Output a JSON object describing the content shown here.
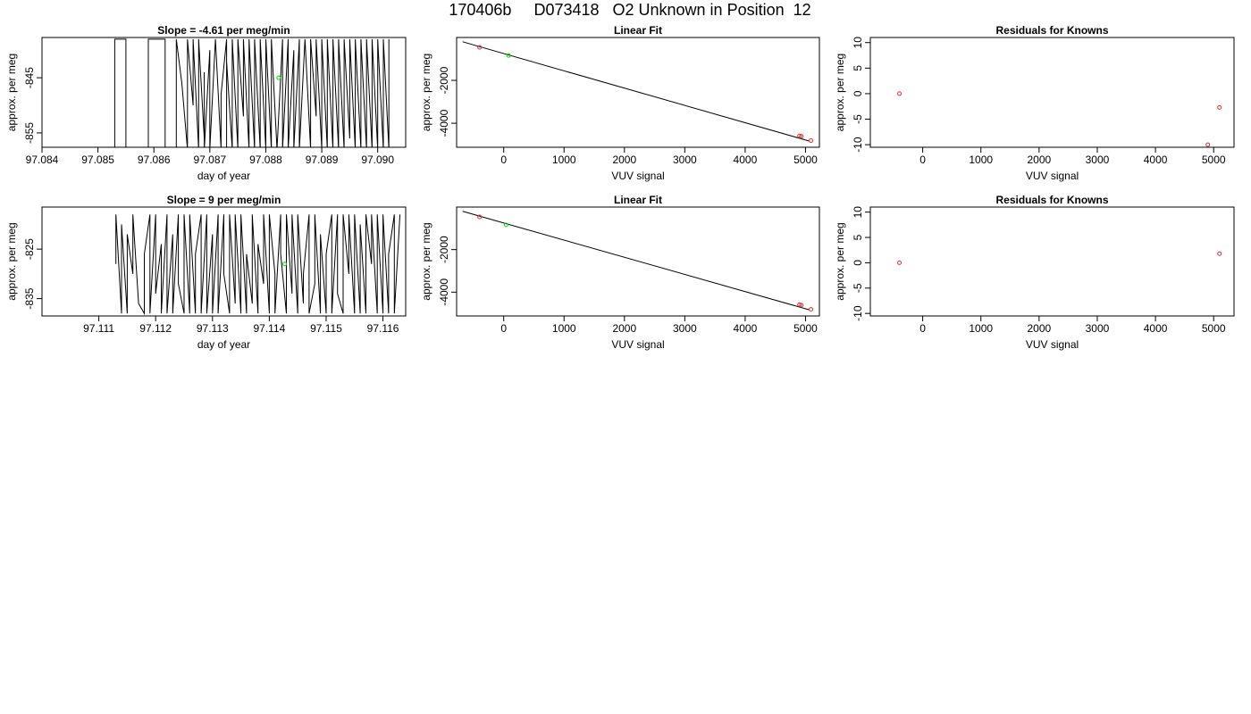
{
  "page_title": "170406b     D073418   O2 Unknown in Position  12",
  "chart_data": [
    {
      "id": "p1",
      "type": "line",
      "title": "Slope =  -4.61  per meg/min",
      "xlabel": "day of year",
      "ylabel": "approx. per meg",
      "xlim": [
        97.084,
        97.0905
      ],
      "ylim": [
        -857.6,
        -837.7
      ],
      "xticks": [
        97.084,
        97.085,
        97.086,
        97.087,
        97.088,
        97.089,
        97.09
      ],
      "xtick_labels": [
        "97.084",
        "97.085",
        "97.086",
        "97.087",
        "97.088",
        "97.089",
        "97.090"
      ],
      "yticks": [
        -855,
        -845
      ],
      "ytick_labels": [
        "-855",
        "-845"
      ],
      "series": [
        {
          "color": "#000000",
          "x": [
            97.0853,
            97.0853,
            97.0855,
            97.0855,
            97.0859,
            97.0859,
            97.0862,
            97.0862,
            97.0864,
            97.0864,
            97.0865,
            97.0866,
            97.0866,
            97.0867,
            97.0867,
            97.0868,
            97.0868,
            97.0869,
            97.0869,
            97.0869,
            97.087,
            97.087,
            97.0871,
            97.0872,
            97.0872,
            97.0873,
            97.0873,
            97.0873,
            97.0874,
            97.0874,
            97.0875,
            97.0875,
            97.0876,
            97.0876,
            97.0877,
            97.0877,
            97.0878,
            97.0878,
            97.0879,
            97.0879,
            97.088,
            97.088,
            97.0881,
            97.0881,
            97.0882,
            97.0883,
            97.0883,
            97.0884,
            97.0884,
            97.0885,
            97.0885,
            97.0886,
            97.0886,
            97.0887,
            97.0888,
            97.0888,
            97.0889,
            97.0889,
            97.089,
            97.089,
            97.0891,
            97.0891,
            97.0892,
            97.0892,
            97.0893,
            97.0893,
            97.0894,
            97.0894,
            97.0895,
            97.0895,
            97.0896,
            97.0896,
            97.0897,
            97.0897,
            97.0898,
            97.0898,
            97.0899,
            97.0899,
            97.09,
            97.09,
            97.0901,
            97.0901,
            97.0902,
            97.0902
          ],
          "y": [
            -858,
            -838,
            -838,
            -858,
            -858,
            -838,
            -838,
            -858,
            -858,
            -838,
            -846,
            -858,
            -838,
            -850,
            -838,
            -858,
            -838,
            -856,
            -844,
            -858,
            -840,
            -858,
            -838,
            -858,
            -848,
            -838,
            -858,
            -842,
            -858,
            -838,
            -858,
            -838,
            -852,
            -838,
            -858,
            -838,
            -858,
            -838,
            -858,
            -838,
            -858,
            -838,
            -858,
            -838,
            -858,
            -838,
            -858,
            -838,
            -858,
            -840,
            -858,
            -838,
            -858,
            -838,
            -858,
            -838,
            -852,
            -838,
            -858,
            -838,
            -858,
            -838,
            -858,
            -838,
            -858,
            -838,
            -858,
            -838,
            -856,
            -838,
            -858,
            -838,
            -858,
            -838,
            -858,
            -838,
            -858,
            -838,
            -858,
            -838,
            -858,
            -838,
            -858,
            -838
          ]
        },
        {
          "color": "#00dd00",
          "marker": "circle",
          "x": [
            97.08823
          ],
          "y": [
            -845.0
          ]
        }
      ]
    },
    {
      "id": "p2",
      "type": "scatter",
      "title": "Linear Fit",
      "xlabel": "VUV signal",
      "ylabel": "approx. per meg",
      "xlim": [
        -780,
        5230
      ],
      "ylim": [
        -5120,
        0
      ],
      "rotated_y_ticks": true,
      "xticks": [
        0,
        1000,
        2000,
        3000,
        4000,
        5000
      ],
      "xtick_labels": [
        "0",
        "1000",
        "2000",
        "3000",
        "4000",
        "5000"
      ],
      "yticks": [
        -4000,
        -2000
      ],
      "ytick_labels": [
        "-4000",
        "-2000"
      ],
      "fit_line": {
        "x": [
          -680,
          5060
        ],
        "y": [
          -200,
          -4830
        ]
      },
      "series": [
        {
          "color": "#e03030",
          "marker": "circle",
          "x": [
            -400,
            4900,
            4930,
            5090
          ],
          "y": [
            -460,
            -4590,
            -4610,
            -4810
          ]
        },
        {
          "color": "#00dd00",
          "marker": "circle",
          "x": [
            80
          ],
          "y": [
            -840
          ]
        }
      ]
    },
    {
      "id": "p3",
      "type": "scatter",
      "title": "Residuals for Knowns",
      "xlabel": "VUV signal",
      "ylabel": "approx. per meg",
      "xlim": [
        -900,
        5350
      ],
      "ylim": [
        -10.5,
        11
      ],
      "xticks": [
        0,
        1000,
        2000,
        3000,
        4000,
        5000
      ],
      "xtick_labels": [
        "0",
        "1000",
        "2000",
        "3000",
        "4000",
        "5000"
      ],
      "yticks": [
        -10,
        -5,
        0,
        5,
        10
      ],
      "ytick_labels": [
        "-10",
        "-5",
        "0",
        "5",
        "10"
      ],
      "series": [
        {
          "color": "#e03030",
          "marker": "circle",
          "x": [
            -400,
            4900,
            5100
          ],
          "y": [
            0,
            -10,
            -2.7
          ]
        }
      ]
    },
    {
      "id": "p4",
      "type": "line",
      "title": "Slope =  9  per meg/min",
      "xlabel": "day of year",
      "ylabel": "approx. per meg",
      "xlim": [
        97.11,
        97.1164
      ],
      "ylim": [
        -838.5,
        -816.5
      ],
      "xticks": [
        97.111,
        97.112,
        97.113,
        97.114,
        97.115,
        97.116
      ],
      "xtick_labels": [
        "97.111",
        "97.112",
        "97.113",
        "97.114",
        "97.115",
        "97.116"
      ],
      "yticks": [
        -835,
        -825
      ],
      "ytick_labels": [
        "-835",
        "-825"
      ],
      "series": [
        {
          "color": "#000000",
          "x": [
            97.1113,
            97.1113,
            97.1114,
            97.1114,
            97.1115,
            97.1115,
            97.1116,
            97.1116,
            97.1117,
            97.1118,
            97.1118,
            97.1119,
            97.1119,
            97.112,
            97.112,
            97.1121,
            97.1121,
            97.1122,
            97.1122,
            97.1123,
            97.1123,
            97.1124,
            97.1124,
            97.1125,
            97.1125,
            97.1126,
            97.1126,
            97.1127,
            97.1127,
            97.1128,
            97.1128,
            97.1129,
            97.1129,
            97.113,
            97.113,
            97.1131,
            97.1131,
            97.1132,
            97.1132,
            97.1133,
            97.1133,
            97.1134,
            97.1134,
            97.1135,
            97.1135,
            97.1136,
            97.1136,
            97.1137,
            97.1137,
            97.1138,
            97.1138,
            97.1139,
            97.1139,
            97.114,
            97.114,
            97.1141,
            97.1141,
            97.1142,
            97.1142,
            97.1143,
            97.1143,
            97.1144,
            97.1144,
            97.1145,
            97.1145,
            97.1146,
            97.1146,
            97.1147,
            97.1147,
            97.1148,
            97.1148,
            97.1149,
            97.1149,
            97.115,
            97.115,
            97.1151,
            97.1151,
            97.1152,
            97.1152,
            97.1153,
            97.1153,
            97.1154,
            97.1154,
            97.1155,
            97.1155,
            97.1156,
            97.1156,
            97.1157,
            97.1157,
            97.1158,
            97.1158,
            97.1159,
            97.1159,
            97.116,
            97.116,
            97.1161,
            97.1161,
            97.1162,
            97.1162,
            97.1163
          ],
          "y": [
            -828,
            -818,
            -838,
            -820,
            -838,
            -822,
            -830,
            -818,
            -836,
            -838,
            -826,
            -818,
            -838,
            -818,
            -834,
            -824,
            -838,
            -818,
            -838,
            -822,
            -838,
            -818,
            -832,
            -838,
            -818,
            -838,
            -818,
            -838,
            -826,
            -818,
            -838,
            -818,
            -838,
            -822,
            -838,
            -818,
            -838,
            -818,
            -830,
            -838,
            -818,
            -836,
            -818,
            -838,
            -818,
            -838,
            -826,
            -836,
            -818,
            -838,
            -824,
            -832,
            -818,
            -838,
            -818,
            -830,
            -838,
            -818,
            -826,
            -838,
            -818,
            -834,
            -818,
            -838,
            -818,
            -836,
            -830,
            -818,
            -838,
            -832,
            -818,
            -838,
            -822,
            -838,
            -826,
            -818,
            -838,
            -818,
            -834,
            -838,
            -818,
            -830,
            -818,
            -838,
            -818,
            -838,
            -820,
            -838,
            -818,
            -828,
            -818,
            -838,
            -818,
            -838,
            -818,
            -838,
            -826,
            -818,
            -838,
            -818
          ]
        },
        {
          "color": "#00dd00",
          "marker": "circle",
          "x": [
            97.11427
          ],
          "y": [
            -828.0
          ]
        }
      ]
    },
    {
      "id": "p5",
      "type": "scatter",
      "title": "Linear Fit",
      "xlabel": "VUV signal",
      "ylabel": "approx. per meg",
      "xlim": [
        -780,
        5230
      ],
      "ylim": [
        -5120,
        0
      ],
      "rotated_y_ticks": true,
      "xticks": [
        0,
        1000,
        2000,
        3000,
        4000,
        5000
      ],
      "xtick_labels": [
        "0",
        "1000",
        "2000",
        "3000",
        "4000",
        "5000"
      ],
      "yticks": [
        -4000,
        -2000
      ],
      "ytick_labels": [
        "-4000",
        "-2000"
      ],
      "fit_line": {
        "x": [
          -680,
          5060
        ],
        "y": [
          -200,
          -4830
        ]
      },
      "series": [
        {
          "color": "#e03030",
          "marker": "circle",
          "x": [
            -400,
            4900,
            4930,
            5090
          ],
          "y": [
            -460,
            -4590,
            -4610,
            -4810
          ]
        },
        {
          "color": "#00dd00",
          "marker": "circle",
          "x": [
            40
          ],
          "y": [
            -840
          ]
        }
      ]
    },
    {
      "id": "p6",
      "type": "scatter",
      "title": "Residuals for Knowns",
      "xlabel": "VUV signal",
      "ylabel": "approx. per meg",
      "xlim": [
        -900,
        5350
      ],
      "ylim": [
        -10.5,
        11
      ],
      "xticks": [
        0,
        1000,
        2000,
        3000,
        4000,
        5000
      ],
      "xtick_labels": [
        "0",
        "1000",
        "2000",
        "3000",
        "4000",
        "5000"
      ],
      "yticks": [
        -10,
        -5,
        0,
        5,
        10
      ],
      "ytick_labels": [
        "-10",
        "-5",
        "0",
        "5",
        "10"
      ],
      "series": [
        {
          "color": "#e03030",
          "marker": "circle",
          "x": [
            -400,
            5100
          ],
          "y": [
            0,
            1.8
          ]
        }
      ]
    }
  ]
}
